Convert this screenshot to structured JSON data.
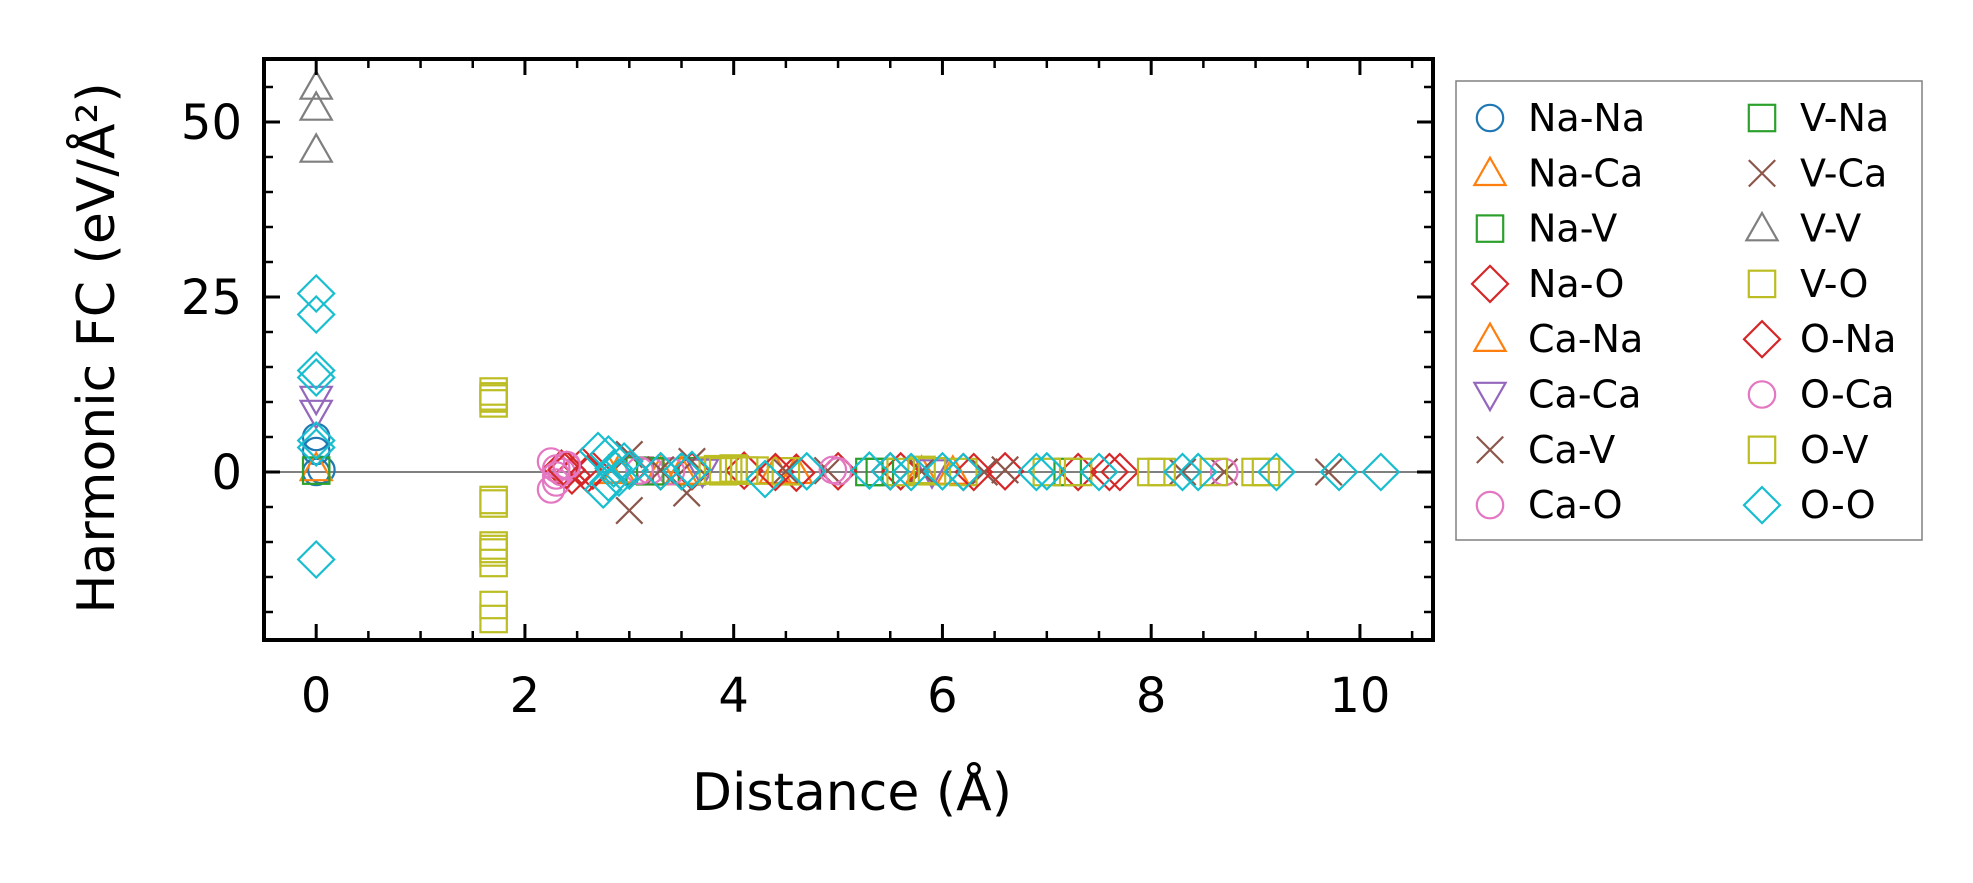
{
  "chart_data": {
    "type": "scatter",
    "xlabel": "Distance (Å)",
    "ylabel": "Harmonic FC (eV/Å²)",
    "xlim": [
      -0.5,
      10.7
    ],
    "ylim": [
      -24,
      59
    ],
    "xticks": [
      0,
      2,
      4,
      6,
      8,
      10
    ],
    "yticks": [
      0,
      25,
      50
    ],
    "legend_position": "outside-right",
    "legend_columns": 2,
    "zero_line": true,
    "series": [
      {
        "name": "Na-Na",
        "marker": "circle",
        "color": "#1f77b4",
        "x": [
          0,
          0,
          0,
          0.05
        ],
        "y": [
          0,
          3,
          5,
          0.3
        ]
      },
      {
        "name": "Na-Ca",
        "marker": "triangle-up",
        "color": "#ff7f0e",
        "x": [
          0,
          2.8,
          3.3,
          4.6,
          6.1
        ],
        "y": [
          0.5,
          0.1,
          -0.1,
          0.1,
          0
        ]
      },
      {
        "name": "Na-V",
        "marker": "square",
        "color": "#2ca02c",
        "x": [
          0,
          3.1,
          3.6,
          5.3,
          7.2
        ],
        "y": [
          0.2,
          0.2,
          0.1,
          0,
          0
        ]
      },
      {
        "name": "Na-O",
        "marker": "diamond",
        "color": "#d62728",
        "x": [
          2.35,
          2.45,
          2.55,
          2.65,
          3.0,
          3.6,
          4.1,
          4.6,
          5.0,
          5.6,
          6.2,
          6.6,
          7.3,
          7.7
        ],
        "y": [
          0.5,
          -0.5,
          0.8,
          0.2,
          0.3,
          0.1,
          0.2,
          -0.1,
          0.1,
          0.1,
          0,
          0.1,
          0,
          0
        ]
      },
      {
        "name": "Ca-Na",
        "marker": "triangle-up",
        "color": "#ff7f0e",
        "x": [
          2.9,
          3.5,
          4.4,
          5.8
        ],
        "y": [
          0.2,
          0,
          0.1,
          0
        ]
      },
      {
        "name": "Ca-Ca",
        "marker": "triangle-down",
        "color": "#9467bd",
        "x": [
          0,
          0,
          3.7,
          5.9
        ],
        "y": [
          8.5,
          10.5,
          0.1,
          0
        ]
      },
      {
        "name": "Ca-V",
        "marker": "x",
        "color": "#8c564b",
        "x": [
          3.0,
          3.0,
          3.55,
          3.6,
          4.9,
          5.8,
          6.6,
          8.3,
          8.7,
          9.7
        ],
        "y": [
          -5.5,
          2.5,
          -3,
          1.5,
          0.2,
          0.1,
          0.3,
          0,
          0,
          0
        ]
      },
      {
        "name": "Ca-O",
        "marker": "circle",
        "color": "#e377c2",
        "x": [
          2.25,
          2.25,
          2.3,
          2.3,
          2.35,
          2.4,
          3.2,
          3.4,
          4.95,
          8.7
        ],
        "y": [
          1.5,
          -2.5,
          0.5,
          -1.5,
          0,
          0.8,
          0.2,
          0.1,
          0.3,
          0
        ]
      },
      {
        "name": "V-Na",
        "marker": "square",
        "color": "#2ca02c",
        "x": [
          3.2,
          4.0,
          5.4
        ],
        "y": [
          0.1,
          0.2,
          0
        ]
      },
      {
        "name": "V-Ca",
        "marker": "x",
        "color": "#8c564b",
        "x": [
          3.3,
          4.5,
          6.4
        ],
        "y": [
          0.3,
          0.1,
          0
        ]
      },
      {
        "name": "V-V",
        "marker": "triangle-up",
        "color": "#7f7f7f",
        "x": [
          0,
          0,
          0
        ],
        "y": [
          46,
          52,
          55
        ]
      },
      {
        "name": "V-O",
        "marker": "square",
        "color": "#bcbd22",
        "x": [
          1.7,
          1.7,
          1.7,
          1.7,
          1.7,
          1.7,
          1.7,
          1.7,
          1.7,
          1.7,
          3.8,
          3.9,
          4.0,
          4.2,
          4.5,
          5.6,
          5.8,
          6.2,
          7.0,
          7.3,
          8.0,
          8.6,
          9.0
        ],
        "y": [
          11.5,
          10.5,
          9.8,
          -4,
          -4.5,
          -10.5,
          -11.5,
          -13,
          -19,
          -21,
          0.2,
          0.1,
          0.5,
          0.2,
          0.1,
          0,
          0.3,
          0,
          0,
          0,
          0,
          0,
          0
        ]
      },
      {
        "name": "O-Na",
        "marker": "diamond",
        "color": "#d62728",
        "x": [
          2.4,
          2.6,
          3.3,
          4.4,
          5.5,
          6.3,
          7.6
        ],
        "y": [
          0.3,
          -0.3,
          0.1,
          0,
          0.1,
          0,
          0
        ]
      },
      {
        "name": "O-Ca",
        "marker": "circle",
        "color": "#e377c2",
        "x": [
          2.3,
          2.4,
          3.1,
          5.0
        ],
        "y": [
          -0.5,
          1.0,
          0.2,
          0.1
        ]
      },
      {
        "name": "O-V",
        "marker": "square",
        "color": "#bcbd22",
        "x": [
          1.7,
          1.7,
          3.85,
          4.1,
          5.9,
          8.1,
          9.1
        ],
        "y": [
          -11,
          10.8,
          0.4,
          0.2,
          0.1,
          0,
          0
        ]
      },
      {
        "name": "O-O",
        "marker": "diamond",
        "color": "#17becf",
        "x": [
          0,
          0,
          0,
          0,
          0,
          0,
          0,
          2.7,
          2.75,
          2.8,
          2.8,
          2.85,
          2.9,
          2.95,
          3.0,
          3.3,
          3.5,
          3.6,
          4.3,
          4.7,
          5.3,
          5.5,
          5.7,
          6.0,
          6.2,
          6.9,
          7.0,
          7.5,
          8.3,
          8.45,
          9.2,
          9.8,
          10.2
        ],
        "y": [
          -12.5,
          25.5,
          22.5,
          14.5,
          13.5,
          4.5,
          3.5,
          3.0,
          -2.5,
          2.5,
          -1.5,
          0.5,
          -0.8,
          1.5,
          0.2,
          0.1,
          0.1,
          0.3,
          -1,
          0.1,
          0.2,
          0.1,
          0,
          0.1,
          0,
          0,
          0.1,
          0,
          0,
          0,
          0,
          0,
          0
        ]
      }
    ]
  }
}
